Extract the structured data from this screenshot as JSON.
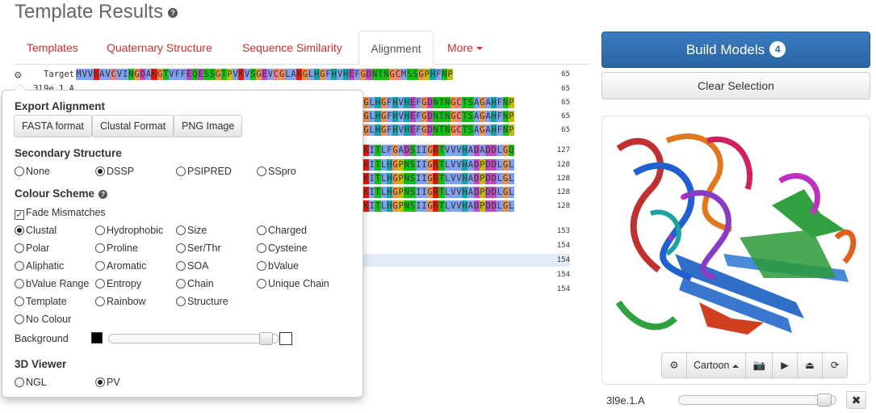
{
  "page": {
    "title": "Template Results",
    "help_icon": "question-circle-icon"
  },
  "tabs": [
    {
      "label": "Templates",
      "active": false
    },
    {
      "label": "Quaternary Structure",
      "active": false
    },
    {
      "label": "Sequence Similarity",
      "active": false
    },
    {
      "label": "Alignment",
      "active": true
    },
    {
      "label": "More",
      "active": false,
      "dropdown": true
    }
  ],
  "alignment": {
    "rows": [
      {
        "name": "Target",
        "seq": "MVVKAVCVINGDAKGTVFFEQESSGTPVKVSGEVCGLAKGLHGFHVHEFGDNTNGCMSSGPHFNP",
        "num": "65"
      },
      {
        "name": "3l9e.1.A",
        "seq": "",
        "num": "65"
      },
      {
        "name": "",
        "seq": "GLHGFHVHEFGDNTNGCTSAGAHFNP",
        "num": "65"
      },
      {
        "name": "",
        "seq": "GLHGFHVHEFGDNTNGCTSAGAHFNP",
        "num": "65"
      },
      {
        "name": "",
        "seq": "GLHGFHVHEFGDNTNGCTSAGAHFNP",
        "num": "65"
      },
      {
        "name": "",
        "seq": "KITLFGADSIIGRTVVVHADADDLGQ",
        "num": "127"
      },
      {
        "name": "",
        "seq": "KITLHGPNSIIGRTLVVHADPDDLGL",
        "num": "128"
      },
      {
        "name": "",
        "seq": "KITLHGPNSIIGRTLVVHADPDDLGL",
        "num": "128"
      },
      {
        "name": "",
        "seq": "KITLHGPNSIIGRTLVVHADPDDLGL",
        "num": "128"
      },
      {
        "name": "",
        "seq": "KITLHGPNSIIGRTLVVHADPDDLGL",
        "num": "128"
      },
      {
        "name": "",
        "seq": "",
        "num": "153"
      },
      {
        "name": "",
        "seq": "",
        "num": "154"
      },
      {
        "name": "",
        "seq": "",
        "num": "154",
        "highlight": true
      },
      {
        "name": "",
        "seq": "",
        "num": "154"
      },
      {
        "name": "",
        "seq": "",
        "num": "154"
      }
    ]
  },
  "settings": {
    "export": {
      "title": "Export Alignment",
      "buttons": [
        "FASTA format",
        "Clustal Format",
        "PNG Image"
      ]
    },
    "secondary_structure": {
      "title": "Secondary Structure",
      "options": [
        "None",
        "DSSP",
        "PSIPRED",
        "SSpro"
      ],
      "selected": "DSSP"
    },
    "colour_scheme": {
      "title": "Colour Scheme",
      "fade_mismatches_label": "Fade Mismatches",
      "fade_mismatches": true,
      "options": [
        [
          "Clustal",
          "Hydrophobic",
          "Size",
          "Charged"
        ],
        [
          "Polar",
          "Proline",
          "Ser/Thr",
          "Cysteine"
        ],
        [
          "Aliphatic",
          "Aromatic",
          "SOA",
          "bValue"
        ],
        [
          "bValue Range",
          "Entropy",
          "Chain",
          "Unique Chain"
        ],
        [
          "Template",
          "Rainbow",
          "Structure"
        ],
        [
          "No Colour"
        ]
      ],
      "selected": "Clustal",
      "background_label": "Background",
      "background_color": "#000000",
      "background_level": 0.96
    },
    "viewer_3d": {
      "title": "3D Viewer",
      "options": [
        "NGL",
        "PV"
      ],
      "selected": "PV"
    }
  },
  "sidebar": {
    "build_label": "Build Models",
    "build_count": "4",
    "clear_label": "Clear Selection",
    "viewer_toolbar": {
      "gear_icon": "gear-icon",
      "mode_label": "Cartoon",
      "camera_icon": "camera-icon",
      "play_icon": "play-icon",
      "eject_icon": "eject-icon",
      "refresh_icon": "refresh-icon"
    },
    "model_label": "3l9e.1.A",
    "model_level": 0.95,
    "close_icon": "close-icon"
  },
  "colors": {
    "accent": "#c9302c",
    "primary": "#2a64a3",
    "hydrophobic": "#80a0f0",
    "polar": "#15c015",
    "gly": "#f09048",
    "pro": "#c0c000",
    "positive": "#f01505",
    "negative": "#c048c0",
    "aromatic": "#15a4a4",
    "cys": "#f08080"
  }
}
